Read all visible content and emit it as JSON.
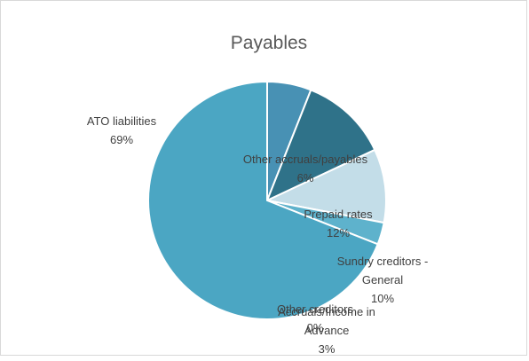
{
  "chart_data": {
    "type": "pie",
    "title": "Payables",
    "start_angle_deg": 0,
    "direction": "clockwise",
    "legend": "none",
    "slices": [
      {
        "name": "Other accruals/payables",
        "value": 6,
        "label": [
          "Other accruals/payables",
          "6%"
        ],
        "color": "#4891b4"
      },
      {
        "name": "Prepaid rates",
        "value": 12,
        "label": [
          "Prepaid rates",
          "12%"
        ],
        "color": "#2f7289"
      },
      {
        "name": "Sundry creditors - General",
        "value": 10,
        "label": [
          "Sundry creditors -",
          "General",
          "10%"
        ],
        "color": "#c3dde8"
      },
      {
        "name": "Other creditors",
        "value": 0,
        "label": [
          "Other creditors",
          "0%"
        ],
        "color": "#8ac4d8"
      },
      {
        "name": "Accruals/Income in Advance",
        "value": 3,
        "label": [
          "Accruals/Income in",
          "Advance",
          "3%"
        ],
        "color": "#5eb2cc"
      },
      {
        "name": "ATO liabilities",
        "value": 69,
        "label": [
          "ATO liabilities",
          "69%"
        ],
        "color": "#4ba6c3"
      }
    ]
  }
}
